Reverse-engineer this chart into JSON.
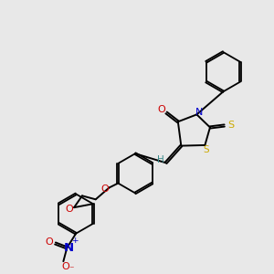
{
  "bg_color": "#e8e8e8",
  "bond_color": "#000000",
  "atom_colors": {
    "O": "#cc0000",
    "N": "#0000cc",
    "S": "#ccaa00",
    "H": "#3a8a8a",
    "C": "#000000"
  },
  "figsize": [
    3.0,
    3.0
  ],
  "dpi": 100,
  "lw": 1.4,
  "lw_ring": 1.3,
  "sep": 2.2,
  "fs": 7.5
}
